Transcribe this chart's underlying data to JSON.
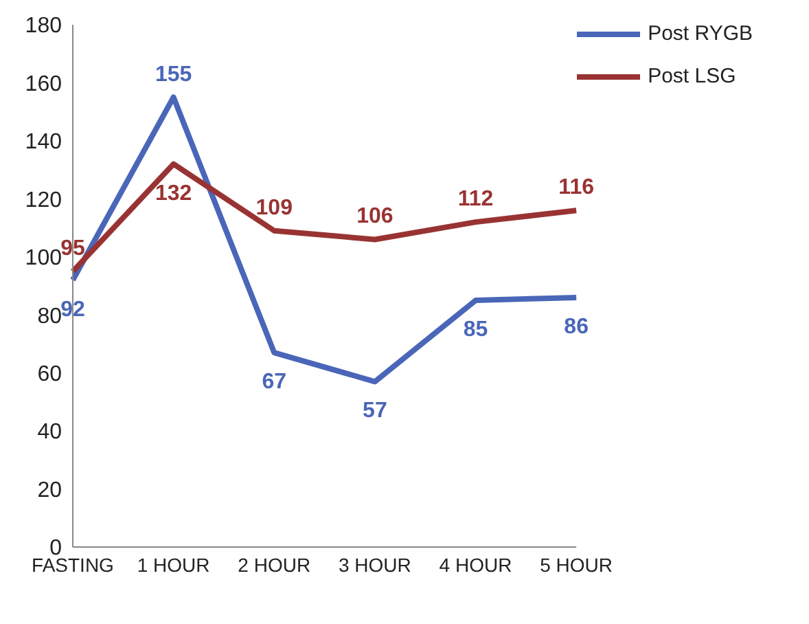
{
  "chart_data": {
    "type": "line",
    "categories": [
      "FASTING",
      "1 HOUR",
      "2 HOUR",
      "3 HOUR",
      "4 HOUR",
      "5 HOUR"
    ],
    "series": [
      {
        "name": "Post RYGB",
        "color": "#4a66b8",
        "values": [
          92,
          155,
          67,
          57,
          85,
          86
        ]
      },
      {
        "name": "Post LSG",
        "color": "#993333",
        "values": [
          95,
          132,
          109,
          106,
          112,
          116
        ]
      }
    ],
    "ylim": [
      0,
      180
    ],
    "yticks": [
      0,
      20,
      40,
      60,
      80,
      100,
      120,
      140,
      160,
      180
    ],
    "grid": false,
    "legend": "top right",
    "marker": "none",
    "line_style": "solid",
    "data_labels": true
  }
}
